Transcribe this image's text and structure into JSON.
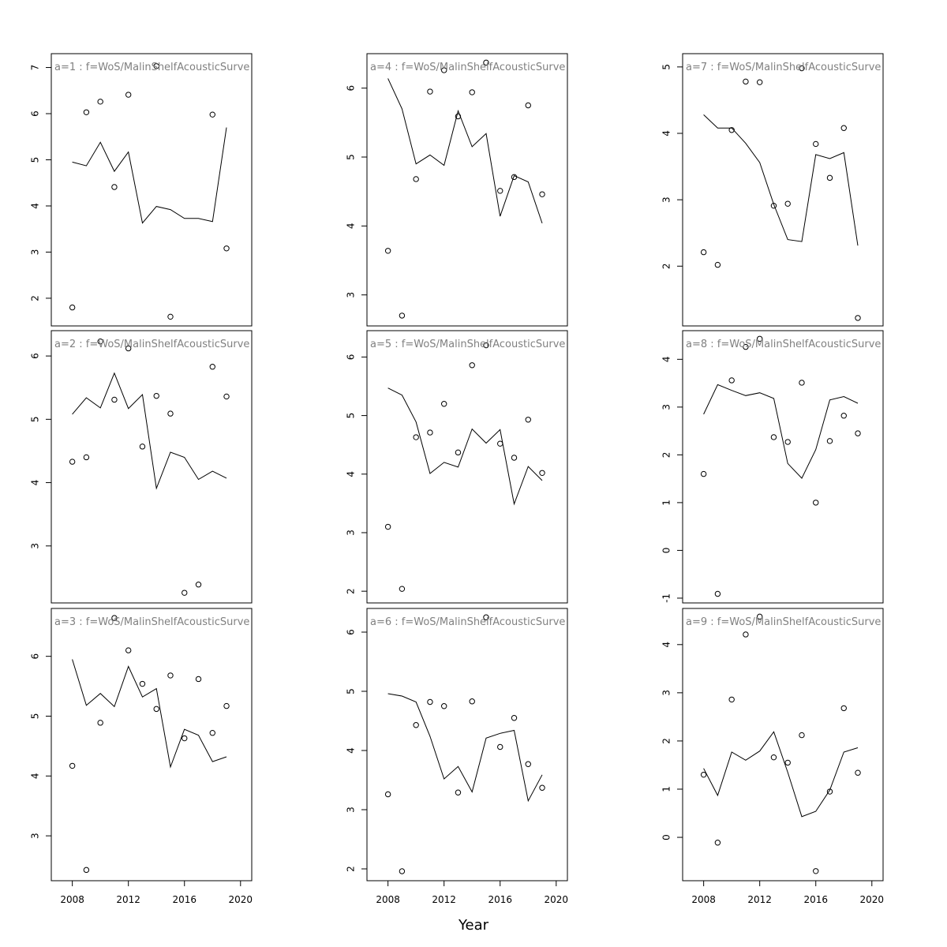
{
  "figure": {
    "xlabel": "Year"
  },
  "chart_data": [
    {
      "type": "scatter+line",
      "label": "a=1  :  f=WoS/MalinShelfAcousticSurve",
      "x": [
        2008,
        2009,
        2010,
        2011,
        2012,
        2013,
        2014,
        2015,
        2016,
        2017,
        2018,
        2019
      ],
      "points": [
        1.8,
        6.03,
        6.26,
        4.41,
        6.41,
        null,
        7.03,
        1.6,
        null,
        null,
        5.98,
        3.08
      ],
      "line": [
        4.95,
        4.87,
        5.38,
        4.75,
        5.17,
        3.63,
        3.99,
        3.92,
        3.73,
        3.73,
        3.66,
        5.7
      ],
      "xticks": [
        2008,
        2012,
        2016,
        2020
      ],
      "yticks": [
        2,
        3,
        4,
        5,
        6,
        7
      ],
      "xlim": [
        2006.5,
        2020.8
      ],
      "ylim": [
        1.4,
        7.3
      ]
    },
    {
      "type": "scatter+line",
      "label": "a=2  :  f=WoS/MalinShelfAcousticSurve",
      "x": [
        2008,
        2009,
        2010,
        2011,
        2012,
        2013,
        2014,
        2015,
        2016,
        2017,
        2018,
        2019
      ],
      "points": [
        4.33,
        4.4,
        6.23,
        5.31,
        6.12,
        4.57,
        5.37,
        5.09,
        2.26,
        2.39,
        5.83,
        5.36
      ],
      "line": [
        5.08,
        5.34,
        5.18,
        5.73,
        5.17,
        5.39,
        3.91,
        4.48,
        4.4,
        4.05,
        4.18,
        4.07
      ],
      "xticks": [
        2008,
        2012,
        2016,
        2020
      ],
      "yticks": [
        3,
        4,
        5,
        6
      ],
      "xlim": [
        2006.5,
        2020.8
      ],
      "ylim": [
        2.1,
        6.4
      ]
    },
    {
      "type": "scatter+line",
      "label": "a=3  :  f=WoS/MalinShelfAcousticSurve",
      "x": [
        2008,
        2009,
        2010,
        2011,
        2012,
        2013,
        2014,
        2015,
        2016,
        2017,
        2018,
        2019
      ],
      "points": [
        4.17,
        2.43,
        4.89,
        6.64,
        6.1,
        5.54,
        5.12,
        5.68,
        4.63,
        5.62,
        4.72,
        5.17
      ],
      "line": [
        5.95,
        5.18,
        5.38,
        5.16,
        5.83,
        5.32,
        5.46,
        4.15,
        4.78,
        4.68,
        4.24,
        4.32
      ],
      "xticks": [
        2008,
        2012,
        2016,
        2020
      ],
      "yticks": [
        3,
        4,
        5,
        6
      ],
      "xlim": [
        2006.5,
        2020.8
      ],
      "ylim": [
        2.25,
        6.8
      ]
    },
    {
      "type": "scatter+line",
      "label": "a=4  :  f=WoS/MalinShelfAcousticSurve",
      "x": [
        2008,
        2009,
        2010,
        2011,
        2012,
        2013,
        2014,
        2015,
        2016,
        2017,
        2018,
        2019
      ],
      "points": [
        3.64,
        2.7,
        4.68,
        5.95,
        6.26,
        5.59,
        5.94,
        6.37,
        4.51,
        4.71,
        5.75,
        4.46
      ],
      "line": [
        6.14,
        5.7,
        4.9,
        5.03,
        4.88,
        5.67,
        5.15,
        5.34,
        4.14,
        4.73,
        4.64,
        4.04
      ],
      "xticks": [
        2008,
        2012,
        2016,
        2020
      ],
      "yticks": [
        3,
        4,
        5,
        6
      ],
      "xlim": [
        2006.5,
        2020.8
      ],
      "ylim": [
        2.55,
        6.5
      ]
    },
    {
      "type": "scatter+line",
      "label": "a=5  :  f=WoS/MalinShelfAcousticSurve",
      "x": [
        2008,
        2009,
        2010,
        2011,
        2012,
        2013,
        2014,
        2015,
        2016,
        2017,
        2018,
        2019
      ],
      "points": [
        3.1,
        2.04,
        4.63,
        4.71,
        5.2,
        4.37,
        5.86,
        6.2,
        4.52,
        4.28,
        4.93,
        4.02
      ],
      "line": [
        5.47,
        5.35,
        4.89,
        4.01,
        4.2,
        4.12,
        4.77,
        4.53,
        4.76,
        3.49,
        4.13,
        3.89
      ],
      "xticks": [
        2008,
        2012,
        2016,
        2020
      ],
      "yticks": [
        2,
        3,
        4,
        5,
        6
      ],
      "xlim": [
        2006.5,
        2020.8
      ],
      "ylim": [
        1.8,
        6.45
      ]
    },
    {
      "type": "scatter+line",
      "label": "a=6  :  f=WoS/MalinShelfAcousticSurve",
      "x": [
        2008,
        2009,
        2010,
        2011,
        2012,
        2013,
        2014,
        2015,
        2016,
        2017,
        2018,
        2019
      ],
      "points": [
        3.26,
        1.96,
        4.43,
        4.82,
        4.75,
        3.29,
        4.83,
        6.25,
        4.06,
        4.55,
        3.77,
        3.37
      ],
      "line": [
        4.96,
        4.92,
        4.82,
        4.24,
        3.52,
        3.73,
        3.3,
        4.21,
        4.29,
        4.34,
        3.15,
        3.59
      ],
      "xticks": [
        2008,
        2012,
        2016,
        2020
      ],
      "yticks": [
        2,
        3,
        4,
        5,
        6
      ],
      "xlim": [
        2006.5,
        2020.8
      ],
      "ylim": [
        1.8,
        6.4
      ]
    },
    {
      "type": "scatter+line",
      "label": "a=7  :  f=WoS/MalinShelfAcousticSurve",
      "x": [
        2008,
        2009,
        2010,
        2011,
        2012,
        2013,
        2014,
        2015,
        2016,
        2017,
        2018,
        2019
      ],
      "points": [
        2.21,
        2.02,
        4.05,
        4.78,
        4.77,
        2.91,
        2.94,
        4.98,
        3.84,
        3.33,
        4.08,
        1.22
      ],
      "line": [
        4.28,
        4.08,
        4.08,
        3.85,
        3.56,
        2.93,
        2.4,
        2.37,
        3.68,
        3.62,
        3.71,
        2.31
      ],
      "xticks": [
        2008,
        2012,
        2016,
        2020
      ],
      "yticks": [
        2,
        3,
        4,
        5
      ],
      "xlim": [
        2006.5,
        2020.8
      ],
      "ylim": [
        1.1,
        5.2
      ]
    },
    {
      "type": "scatter+line",
      "label": "a=8  :  f=WoS/MalinShelfAcousticSurve",
      "x": [
        2008,
        2009,
        2010,
        2011,
        2012,
        2013,
        2014,
        2015,
        2016,
        2017,
        2018,
        2019
      ],
      "points": [
        1.6,
        -0.91,
        3.56,
        4.26,
        4.43,
        2.37,
        2.27,
        3.51,
        1.0,
        2.29,
        2.82,
        2.45
      ],
      "line": [
        2.85,
        3.47,
        3.35,
        3.24,
        3.3,
        3.18,
        1.82,
        1.51,
        2.11,
        3.15,
        3.22,
        3.08
      ],
      "xticks": [
        2008,
        2012,
        2016,
        2020
      ],
      "yticks": [
        -1,
        0,
        1,
        2,
        3,
        4
      ],
      "xlim": [
        2006.5,
        2020.8
      ],
      "ylim": [
        -1.1,
        4.6
      ]
    },
    {
      "type": "scatter+line",
      "label": "a=9  :  f=WoS/MalinShelfAcousticSurve",
      "x": [
        2008,
        2009,
        2010,
        2011,
        2012,
        2013,
        2014,
        2015,
        2016,
        2017,
        2018,
        2019
      ],
      "points": [
        1.3,
        -0.11,
        2.86,
        4.21,
        4.58,
        1.66,
        1.55,
        2.12,
        -0.7,
        0.95,
        2.68,
        1.34
      ],
      "line": [
        1.43,
        0.87,
        1.77,
        1.6,
        1.79,
        2.19,
        1.35,
        0.43,
        0.54,
        0.98,
        1.77,
        1.86
      ],
      "xticks": [
        2008,
        2012,
        2016,
        2020
      ],
      "yticks": [
        0,
        1,
        2,
        3,
        4
      ],
      "xlim": [
        2006.5,
        2020.8
      ],
      "ylim": [
        -0.9,
        4.75
      ]
    }
  ]
}
